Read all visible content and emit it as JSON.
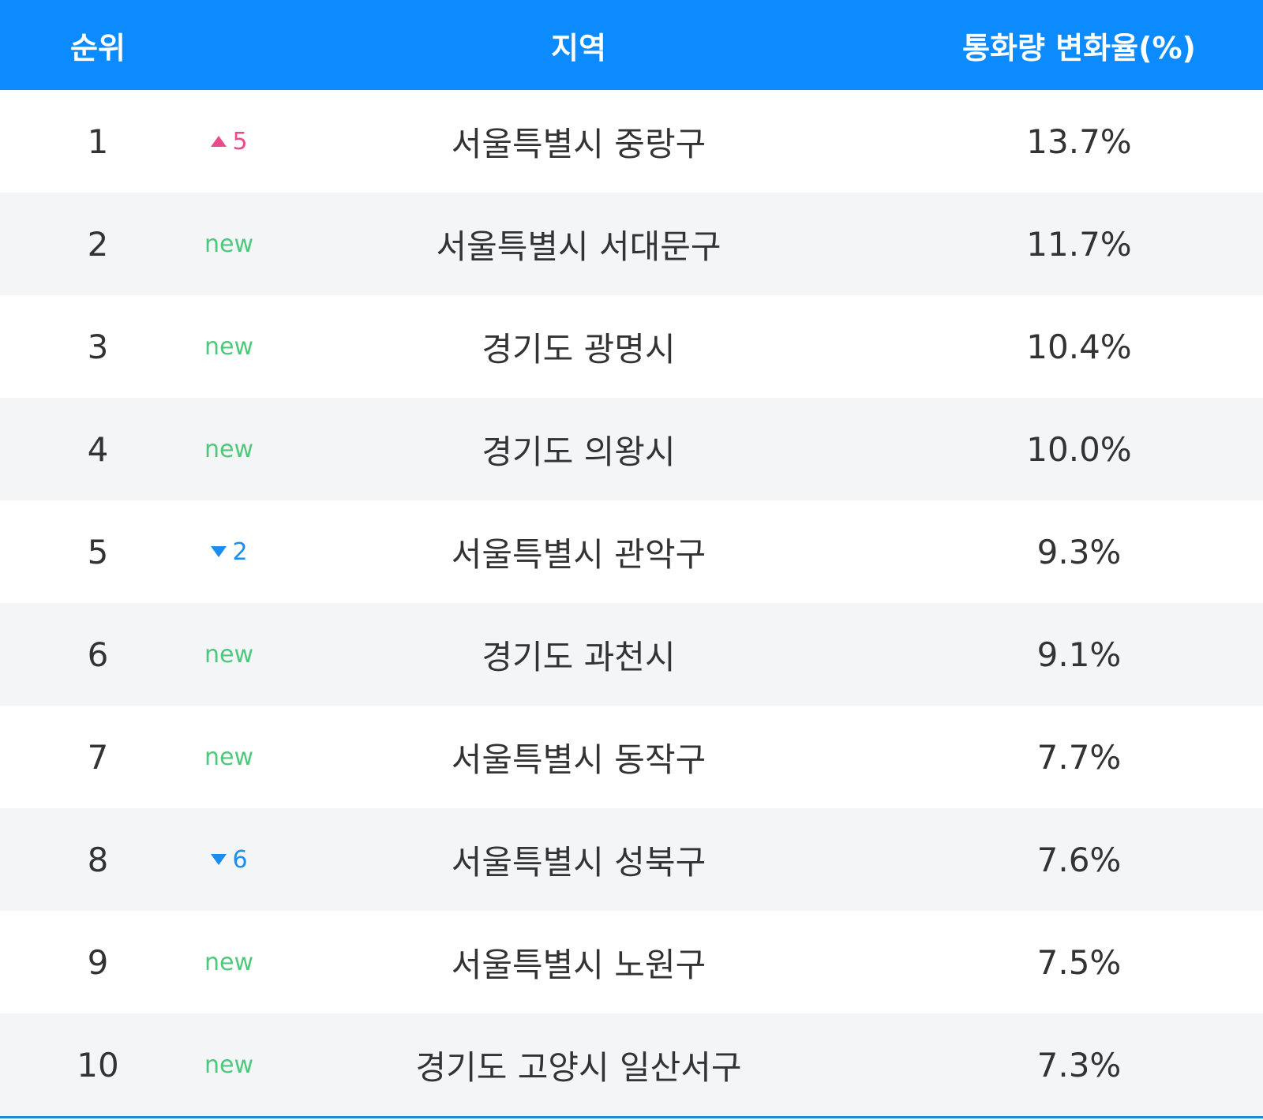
{
  "table": {
    "header": [
      "순위",
      "지역",
      "통화량 변화율(%)"
    ],
    "rows": [
      {
        "rank": "1",
        "change": {
          "trend": "up",
          "text": "5"
        },
        "region": "서울특별시 중랑구",
        "rate": "13.7%"
      },
      {
        "rank": "2",
        "change": {
          "trend": "new",
          "text": "new"
        },
        "region": "서울특별시 서대문구",
        "rate": "11.7%"
      },
      {
        "rank": "3",
        "change": {
          "trend": "new",
          "text": "new"
        },
        "region": "경기도 광명시",
        "rate": "10.4%"
      },
      {
        "rank": "4",
        "change": {
          "trend": "new",
          "text": "new"
        },
        "region": "경기도 의왕시",
        "rate": "10.0%"
      },
      {
        "rank": "5",
        "change": {
          "trend": "down",
          "text": "2"
        },
        "region": "서울특별시 관악구",
        "rate": "9.3%"
      },
      {
        "rank": "6",
        "change": {
          "trend": "new",
          "text": "new"
        },
        "region": "경기도 과천시",
        "rate": "9.1%"
      },
      {
        "rank": "7",
        "change": {
          "trend": "new",
          "text": "new"
        },
        "region": "서울특별시 동작구",
        "rate": "7.7%"
      },
      {
        "rank": "8",
        "change": {
          "trend": "down",
          "text": "6"
        },
        "region": "서울특별시 성북구",
        "rate": "7.6%"
      },
      {
        "rank": "9",
        "change": {
          "trend": "new",
          "text": "new"
        },
        "region": "서울특별시 노원구",
        "rate": "7.5%"
      },
      {
        "rank": "10",
        "change": {
          "trend": "new",
          "text": "new"
        },
        "region": "경기도 고양시 일산서구",
        "rate": "7.3%"
      }
    ]
  }
}
